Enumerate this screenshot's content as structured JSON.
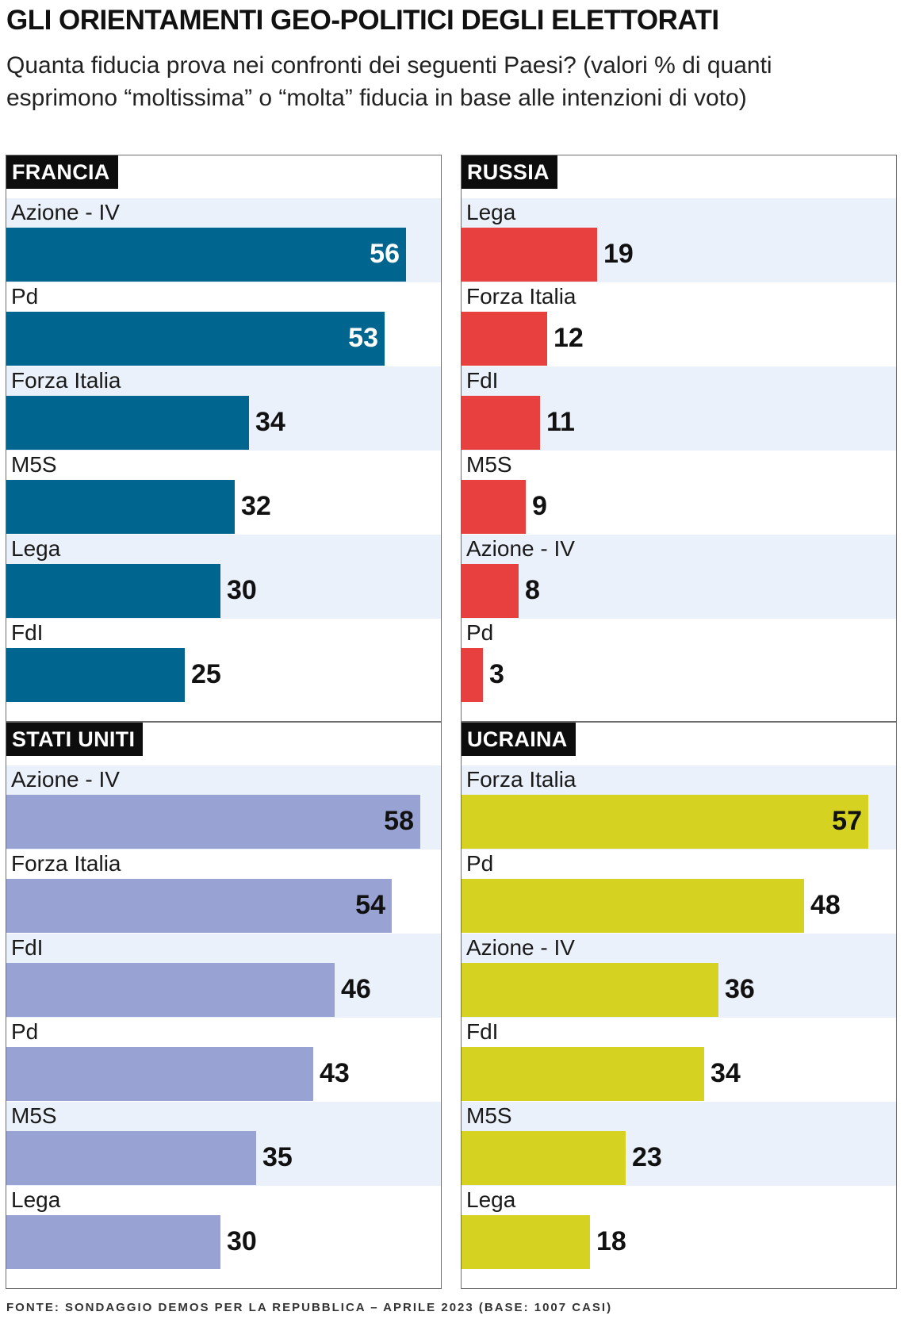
{
  "title": "GLI ORIENTAMENTI GEO-POLITICI DEGLI ELETTORATI",
  "subtitle": "Quanta fiducia prova nei confronti dei seguenti Paesi? (valori % di quanti esprimono “moltissima” o “molta” fiducia in base alle intenzioni di voto)",
  "source": "FONTE: SONDAGGIO DEMOS PER LA REPUBBLICA – APRILE 2023 (BASE: 1007 CASI)",
  "colors": {
    "francia": "#00658f",
    "russia": "#e8403f",
    "stati_uniti": "#98a3d3",
    "ucraina": "#d5d222",
    "band": "#ebf1fa"
  },
  "chart_data": [
    {
      "type": "bar",
      "orientation": "horizontal",
      "title": "FRANCIA",
      "categories": [
        "Azione - IV",
        "Pd",
        "Forza Italia",
        "M5S",
        "Lega",
        "FdI"
      ],
      "values": [
        56,
        53,
        34,
        32,
        30,
        25
      ],
      "color": "#00658f",
      "value_label_inside_from": 50,
      "value_label_color_inside": "#ffffff"
    },
    {
      "type": "bar",
      "orientation": "horizontal",
      "title": "RUSSIA",
      "categories": [
        "Lega",
        "Forza Italia",
        "FdI",
        "M5S",
        "Azione - IV",
        "Pd"
      ],
      "values": [
        19,
        12,
        11,
        9,
        8,
        3
      ],
      "color": "#e8403f",
      "value_label_inside_from": 50,
      "value_label_color_inside": "#ffffff"
    },
    {
      "type": "bar",
      "orientation": "horizontal",
      "title": "STATI UNITI",
      "categories": [
        "Azione - IV",
        "Forza Italia",
        "FdI",
        "Pd",
        "M5S",
        "Lega"
      ],
      "values": [
        58,
        54,
        46,
        43,
        35,
        30
      ],
      "color": "#98a3d3",
      "value_label_inside_from": 50,
      "value_label_color_inside": "#111111"
    },
    {
      "type": "bar",
      "orientation": "horizontal",
      "title": "UCRAINA",
      "categories": [
        "Forza Italia",
        "Pd",
        "Azione - IV",
        "FdI",
        "M5S",
        "Lega"
      ],
      "values": [
        57,
        48,
        36,
        34,
        23,
        18
      ],
      "color": "#d5d222",
      "value_label_inside_from": 50,
      "value_label_color_inside": "#111111"
    }
  ]
}
